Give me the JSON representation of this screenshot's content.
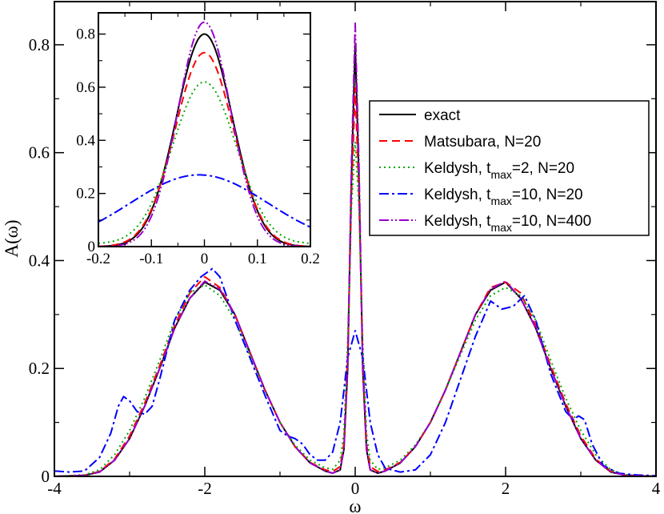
{
  "chart_data": [
    {
      "id": "main",
      "type": "line",
      "xlabel": "ω",
      "ylabel": "A(ω)",
      "xlim": [
        -4,
        4
      ],
      "ylim": [
        0,
        0.88
      ],
      "xticks": [
        -4,
        -2,
        0,
        2,
        4
      ],
      "xtick_labels": [
        "-4",
        "-2",
        "0",
        "2",
        "4"
      ],
      "yticks": [
        0,
        0.2,
        0.4,
        0.6,
        0.8
      ],
      "ytick_labels": [
        "0",
        "0.2",
        "0.4",
        "0.6",
        "0.8"
      ],
      "series": [
        {
          "key": "exact",
          "name": "exact",
          "color": "#000000",
          "dash": "none",
          "x": [
            -4,
            -3.6,
            -3.4,
            -3.2,
            -3.0,
            -2.8,
            -2.6,
            -2.4,
            -2.2,
            -2.0,
            -1.8,
            -1.6,
            -1.4,
            -1.2,
            -1.0,
            -0.8,
            -0.6,
            -0.4,
            -0.3,
            -0.2,
            -0.15,
            -0.1,
            -0.05,
            0,
            0.05,
            0.1,
            0.15,
            0.2,
            0.3,
            0.4,
            0.6,
            0.8,
            1.0,
            1.2,
            1.4,
            1.6,
            1.8,
            2.0,
            2.2,
            2.4,
            2.6,
            2.8,
            3.0,
            3.2,
            3.4,
            3.6,
            4
          ],
          "values": [
            0,
            0.002,
            0.008,
            0.03,
            0.07,
            0.13,
            0.2,
            0.275,
            0.33,
            0.36,
            0.345,
            0.3,
            0.23,
            0.16,
            0.1,
            0.055,
            0.025,
            0.01,
            0.006,
            0.012,
            0.05,
            0.2,
            0.55,
            0.8,
            0.55,
            0.2,
            0.05,
            0.012,
            0.006,
            0.01,
            0.025,
            0.055,
            0.1,
            0.16,
            0.23,
            0.3,
            0.345,
            0.36,
            0.33,
            0.275,
            0.2,
            0.13,
            0.07,
            0.03,
            0.008,
            0.002,
            0
          ]
        },
        {
          "key": "matsubara",
          "name": "Matsubara, N=20",
          "color": "#ff0000",
          "dash": "10,6",
          "x": [
            -4,
            -3.6,
            -3.4,
            -3.2,
            -3.0,
            -2.8,
            -2.6,
            -2.4,
            -2.2,
            -2.0,
            -1.8,
            -1.6,
            -1.4,
            -1.2,
            -1.0,
            -0.8,
            -0.6,
            -0.4,
            -0.3,
            -0.2,
            -0.15,
            -0.1,
            -0.05,
            0,
            0.05,
            0.1,
            0.15,
            0.2,
            0.3,
            0.4,
            0.6,
            0.8,
            1.0,
            1.2,
            1.4,
            1.6,
            1.8,
            2.0,
            2.2,
            2.4,
            2.6,
            2.8,
            3.0,
            3.2,
            3.4,
            3.6,
            4
          ],
          "values": [
            0,
            0.002,
            0.009,
            0.032,
            0.075,
            0.135,
            0.205,
            0.28,
            0.34,
            0.37,
            0.35,
            0.3,
            0.23,
            0.16,
            0.1,
            0.055,
            0.026,
            0.012,
            0.009,
            0.018,
            0.06,
            0.22,
            0.52,
            0.72,
            0.52,
            0.22,
            0.06,
            0.018,
            0.009,
            0.012,
            0.026,
            0.055,
            0.1,
            0.16,
            0.23,
            0.3,
            0.35,
            0.36,
            0.34,
            0.28,
            0.205,
            0.135,
            0.075,
            0.032,
            0.009,
            0.002,
            0
          ]
        },
        {
          "key": "keldysh_2_20",
          "name": "Keldysh, tmax=2, N=20",
          "name_parts": [
            "Keldysh, t",
            "max",
            "=2, N=20"
          ],
          "color": "#00aa00",
          "dash": "2,4",
          "x": [
            -4,
            -3.6,
            -3.4,
            -3.2,
            -3.0,
            -2.8,
            -2.6,
            -2.4,
            -2.2,
            -2.0,
            -1.8,
            -1.6,
            -1.4,
            -1.2,
            -1.0,
            -0.8,
            -0.6,
            -0.4,
            -0.3,
            -0.2,
            -0.15,
            -0.1,
            -0.05,
            0,
            0.05,
            0.1,
            0.15,
            0.2,
            0.3,
            0.4,
            0.6,
            0.8,
            1.0,
            1.2,
            1.4,
            1.6,
            1.8,
            2.0,
            2.2,
            2.4,
            2.6,
            2.8,
            3.0,
            3.2,
            3.4,
            3.6,
            4
          ],
          "values": [
            0,
            0.003,
            0.012,
            0.04,
            0.085,
            0.145,
            0.215,
            0.29,
            0.34,
            0.355,
            0.335,
            0.29,
            0.225,
            0.16,
            0.1,
            0.058,
            0.03,
            0.016,
            0.013,
            0.03,
            0.08,
            0.25,
            0.5,
            0.62,
            0.5,
            0.25,
            0.08,
            0.03,
            0.013,
            0.016,
            0.03,
            0.058,
            0.1,
            0.16,
            0.225,
            0.29,
            0.335,
            0.35,
            0.335,
            0.29,
            0.215,
            0.145,
            0.085,
            0.04,
            0.012,
            0.003,
            0
          ]
        },
        {
          "key": "keldysh_10_20",
          "name": "Keldysh, tmax=10, N=20",
          "name_parts": [
            "Keldysh, t",
            "max",
            "=10, N=20"
          ],
          "color": "#0000ff",
          "dash": "12,4,3,4",
          "x": [
            -4,
            -3.8,
            -3.6,
            -3.4,
            -3.25,
            -3.15,
            -3.08,
            -3.0,
            -2.9,
            -2.8,
            -2.7,
            -2.6,
            -2.4,
            -2.2,
            -2.05,
            -1.9,
            -1.8,
            -1.7,
            -1.6,
            -1.5,
            -1.4,
            -1.2,
            -1.0,
            -0.9,
            -0.8,
            -0.7,
            -0.6,
            -0.5,
            -0.4,
            -0.3,
            -0.2,
            -0.1,
            0,
            0.1,
            0.2,
            0.3,
            0.4,
            0.6,
            0.8,
            1.0,
            1.2,
            1.4,
            1.6,
            1.8,
            1.95,
            2.1,
            2.25,
            2.4,
            2.6,
            2.8,
            2.9,
            2.97,
            3.05,
            3.15,
            3.3,
            3.5,
            3.7,
            4
          ],
          "values": [
            0.01,
            0.008,
            0.01,
            0.035,
            0.08,
            0.13,
            0.148,
            0.14,
            0.12,
            0.115,
            0.13,
            0.18,
            0.29,
            0.345,
            0.37,
            0.385,
            0.37,
            0.33,
            0.29,
            0.255,
            0.22,
            0.15,
            0.085,
            0.075,
            0.07,
            0.06,
            0.04,
            0.03,
            0.03,
            0.045,
            0.1,
            0.22,
            0.27,
            0.22,
            0.1,
            0.04,
            0.015,
            0.008,
            0.012,
            0.04,
            0.1,
            0.18,
            0.26,
            0.325,
            0.31,
            0.315,
            0.335,
            0.29,
            0.19,
            0.12,
            0.105,
            0.112,
            0.105,
            0.06,
            0.02,
            0.006,
            0.003,
            0.001
          ]
        },
        {
          "key": "keldysh_10_400",
          "name": "Keldysh, tmax=10, N=400",
          "name_parts": [
            "Keldysh, t",
            "max",
            "=10, N=400"
          ],
          "color": "#9900cc",
          "dash": "12,3,2,3,2,3",
          "x": [
            -4,
            -3.6,
            -3.4,
            -3.2,
            -3.0,
            -2.8,
            -2.6,
            -2.4,
            -2.2,
            -2.0,
            -1.8,
            -1.6,
            -1.4,
            -1.2,
            -1.0,
            -0.8,
            -0.6,
            -0.4,
            -0.3,
            -0.2,
            -0.15,
            -0.1,
            -0.05,
            0,
            0.05,
            0.1,
            0.15,
            0.2,
            0.3,
            0.4,
            0.6,
            0.8,
            1.0,
            1.2,
            1.4,
            1.6,
            1.8,
            2.0,
            2.2,
            2.4,
            2.6,
            2.8,
            3.0,
            3.2,
            3.4,
            3.6,
            4
          ],
          "values": [
            0,
            0.002,
            0.008,
            0.03,
            0.07,
            0.13,
            0.2,
            0.275,
            0.33,
            0.362,
            0.347,
            0.3,
            0.23,
            0.16,
            0.1,
            0.055,
            0.025,
            0.01,
            0.006,
            0.012,
            0.05,
            0.21,
            0.58,
            0.84,
            0.58,
            0.21,
            0.05,
            0.012,
            0.006,
            0.01,
            0.025,
            0.055,
            0.1,
            0.16,
            0.23,
            0.3,
            0.347,
            0.362,
            0.33,
            0.275,
            0.2,
            0.13,
            0.07,
            0.03,
            0.008,
            0.002,
            0
          ]
        }
      ]
    },
    {
      "id": "inset",
      "type": "line",
      "xlim": [
        -0.2,
        0.2
      ],
      "ylim": [
        0,
        0.88
      ],
      "xticks": [
        -0.2,
        -0.1,
        0,
        0.1,
        0.2
      ],
      "xtick_labels": [
        "-0.2",
        "-0.1",
        "0",
        "0.1",
        "0.2"
      ],
      "yticks": [
        0,
        0.2,
        0.4,
        0.6,
        0.8
      ],
      "ytick_labels": [
        "0",
        "0.2",
        "0.4",
        "0.6",
        "0.8"
      ],
      "series": [
        {
          "key": "exact",
          "center": 0.0,
          "peak": 0.8,
          "width": 0.053,
          "baseline": 0.0
        },
        {
          "key": "matsubara",
          "center": 0.0,
          "peak": 0.73,
          "width": 0.055,
          "baseline": 0.0
        },
        {
          "key": "keldysh_2_20",
          "center": 0.0,
          "peak": 0.62,
          "width": 0.06,
          "baseline": 0.01
        },
        {
          "key": "keldysh_10_20",
          "center": -0.01,
          "peak": 0.27,
          "width": 0.13,
          "baseline": 0.0
        },
        {
          "key": "keldysh_10_400",
          "center": 0.0,
          "peak": 0.845,
          "width": 0.05,
          "baseline": 0.0
        }
      ]
    }
  ]
}
